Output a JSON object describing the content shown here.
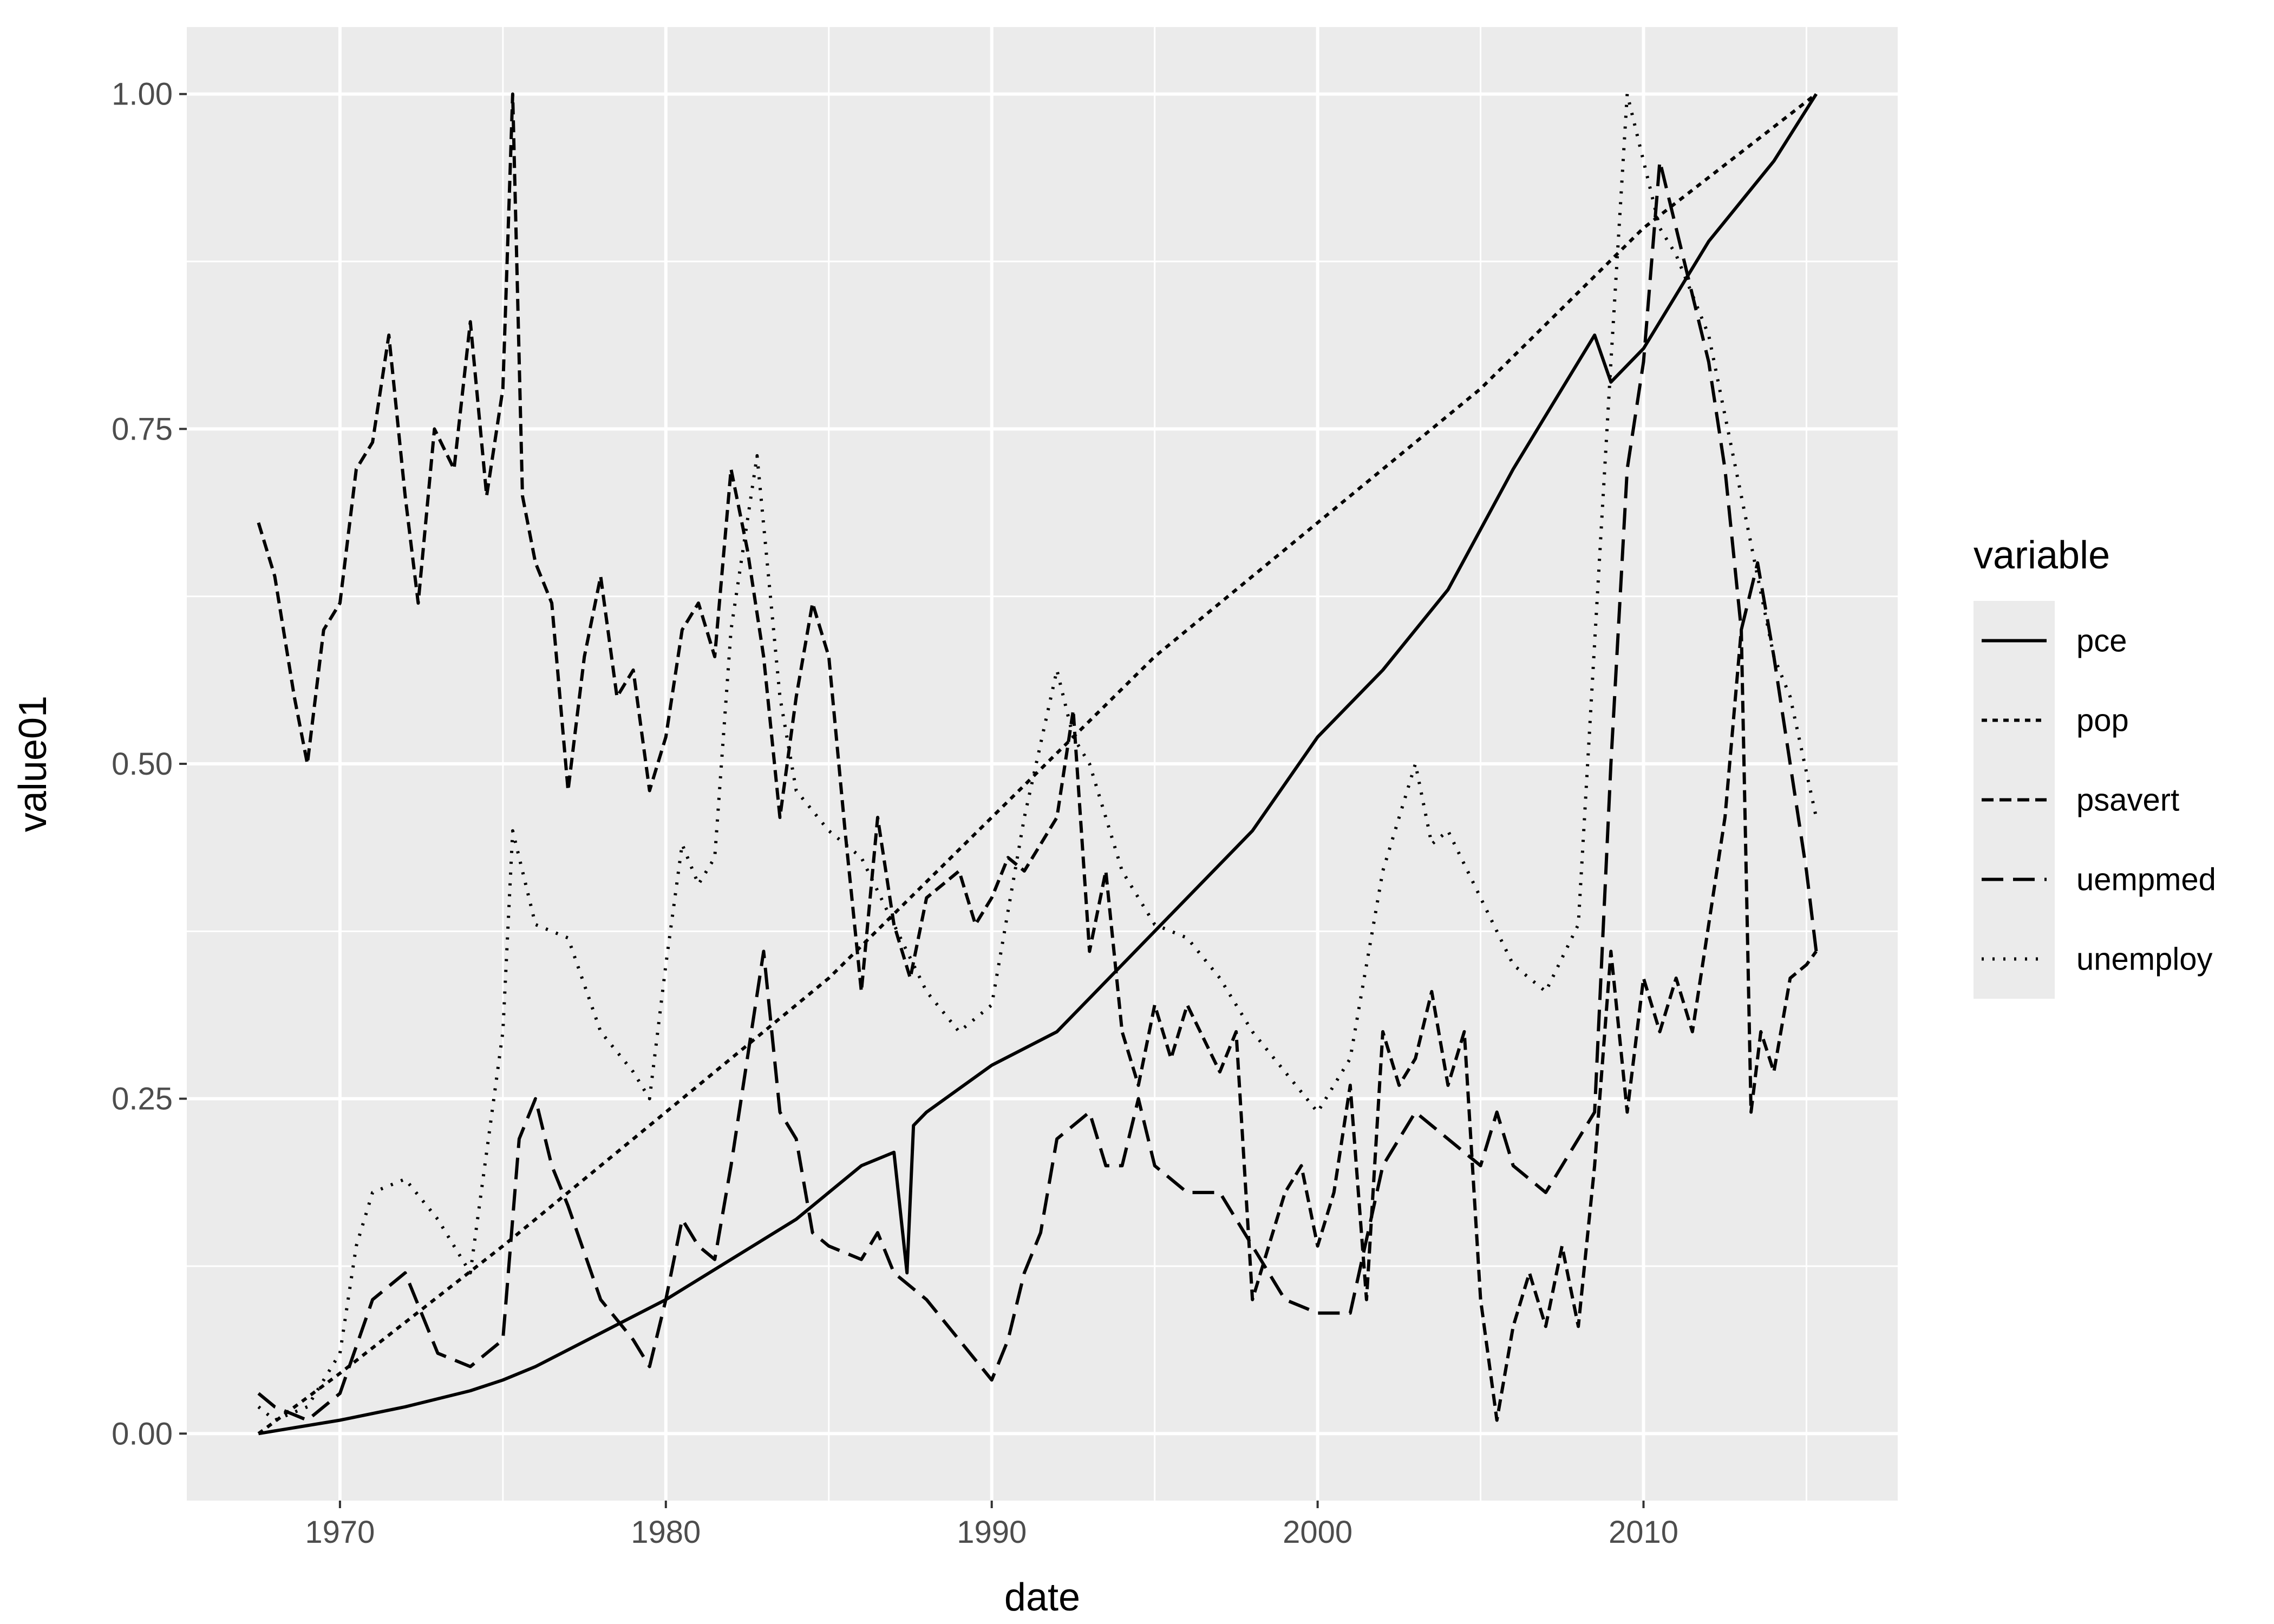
{
  "chart_data": {
    "type": "line",
    "title": "",
    "xlabel": "date",
    "ylabel": "value01",
    "xlim": [
      1965.3,
      2017.8
    ],
    "ylim": [
      -0.05,
      1.05
    ],
    "x_ticks": [
      1970,
      1980,
      1990,
      2000,
      2010
    ],
    "x_tick_labels": [
      "1970",
      "1980",
      "1990",
      "2000",
      "2010"
    ],
    "y_ticks": [
      0,
      0.25,
      0.5,
      0.75,
      1.0
    ],
    "y_tick_labels": [
      "0.00",
      "0.25",
      "0.50",
      "0.75",
      "1.00"
    ],
    "grid": true,
    "background": "#ebebeb",
    "line_color": "#000000",
    "legend": {
      "title": "variable",
      "position": "right"
    },
    "series": [
      {
        "name": "pce",
        "dash": "solid",
        "points": [
          [
            1967.5,
            0.0
          ],
          [
            1970,
            0.01
          ],
          [
            1972,
            0.02
          ],
          [
            1974,
            0.032
          ],
          [
            1975,
            0.04
          ],
          [
            1976,
            0.05
          ],
          [
            1978,
            0.075
          ],
          [
            1980,
            0.1
          ],
          [
            1982,
            0.13
          ],
          [
            1984,
            0.16
          ],
          [
            1986,
            0.2
          ],
          [
            1987,
            0.21
          ],
          [
            1987.4,
            0.12
          ],
          [
            1987.6,
            0.23
          ],
          [
            1988,
            0.24
          ],
          [
            1990,
            0.275
          ],
          [
            1992,
            0.3
          ],
          [
            1994,
            0.35
          ],
          [
            1996,
            0.4
          ],
          [
            1998,
            0.45
          ],
          [
            2000,
            0.52
          ],
          [
            2002,
            0.57
          ],
          [
            2004,
            0.63
          ],
          [
            2006,
            0.72
          ],
          [
            2007,
            0.76
          ],
          [
            2008,
            0.8
          ],
          [
            2008.5,
            0.82
          ],
          [
            2009,
            0.785
          ],
          [
            2010,
            0.81
          ],
          [
            2011,
            0.85
          ],
          [
            2012,
            0.89
          ],
          [
            2013,
            0.92
          ],
          [
            2014,
            0.95
          ],
          [
            2015.3,
            1.0
          ]
        ]
      },
      {
        "name": "pop",
        "dash": "short-dot",
        "points": [
          [
            1967.5,
            0.0
          ],
          [
            1970,
            0.045
          ],
          [
            1975,
            0.14
          ],
          [
            1980,
            0.24
          ],
          [
            1985,
            0.34
          ],
          [
            1990,
            0.46
          ],
          [
            1995,
            0.58
          ],
          [
            2000,
            0.68
          ],
          [
            2005,
            0.78
          ],
          [
            2010,
            0.9
          ],
          [
            2015.3,
            1.0
          ]
        ]
      },
      {
        "name": "psavert",
        "dash": "dashed",
        "points": [
          [
            1967.5,
            0.68
          ],
          [
            1968,
            0.64
          ],
          [
            1968.6,
            0.55
          ],
          [
            1969,
            0.5
          ],
          [
            1969.5,
            0.6
          ],
          [
            1970,
            0.62
          ],
          [
            1970.5,
            0.72
          ],
          [
            1971,
            0.74
          ],
          [
            1971.5,
            0.82
          ],
          [
            1972,
            0.7
          ],
          [
            1972.4,
            0.62
          ],
          [
            1972.9,
            0.75
          ],
          [
            1973.5,
            0.72
          ],
          [
            1974,
            0.83
          ],
          [
            1974.5,
            0.7
          ],
          [
            1975,
            0.78
          ],
          [
            1975.3,
            1.0
          ],
          [
            1975.6,
            0.7
          ],
          [
            1976,
            0.65
          ],
          [
            1976.5,
            0.62
          ],
          [
            1977,
            0.48
          ],
          [
            1977.5,
            0.58
          ],
          [
            1978,
            0.64
          ],
          [
            1978.5,
            0.55
          ],
          [
            1979,
            0.57
          ],
          [
            1979.5,
            0.48
          ],
          [
            1980,
            0.52
          ],
          [
            1980.5,
            0.6
          ],
          [
            1981,
            0.62
          ],
          [
            1981.5,
            0.58
          ],
          [
            1982,
            0.72
          ],
          [
            1982.5,
            0.66
          ],
          [
            1983,
            0.58
          ],
          [
            1983.5,
            0.46
          ],
          [
            1984,
            0.55
          ],
          [
            1984.5,
            0.62
          ],
          [
            1985,
            0.58
          ],
          [
            1985.5,
            0.45
          ],
          [
            1986,
            0.33
          ],
          [
            1986.5,
            0.46
          ],
          [
            1987,
            0.38
          ],
          [
            1987.5,
            0.34
          ],
          [
            1988,
            0.4
          ],
          [
            1989,
            0.42
          ],
          [
            1989.5,
            0.38
          ],
          [
            1990,
            0.4
          ],
          [
            1990.5,
            0.43
          ],
          [
            1991,
            0.42
          ],
          [
            1991.5,
            0.44
          ],
          [
            1992,
            0.46
          ],
          [
            1992.5,
            0.54
          ],
          [
            1993,
            0.36
          ],
          [
            1993.5,
            0.42
          ],
          [
            1994,
            0.3
          ],
          [
            1994.5,
            0.26
          ],
          [
            1995,
            0.32
          ],
          [
            1995.5,
            0.28
          ],
          [
            1996,
            0.32
          ],
          [
            1997,
            0.27
          ],
          [
            1997.5,
            0.3
          ],
          [
            1998,
            0.1
          ],
          [
            1998.5,
            0.14
          ],
          [
            1999,
            0.18
          ],
          [
            1999.5,
            0.2
          ],
          [
            2000,
            0.14
          ],
          [
            2000.5,
            0.18
          ],
          [
            2001,
            0.26
          ],
          [
            2001.5,
            0.1
          ],
          [
            2002,
            0.3
          ],
          [
            2002.5,
            0.26
          ],
          [
            2003,
            0.28
          ],
          [
            2003.5,
            0.33
          ],
          [
            2004,
            0.26
          ],
          [
            2004.5,
            0.3
          ],
          [
            2005,
            0.1
          ],
          [
            2005.5,
            0.01
          ],
          [
            2006,
            0.08
          ],
          [
            2006.5,
            0.12
          ],
          [
            2007,
            0.08
          ],
          [
            2007.5,
            0.14
          ],
          [
            2008,
            0.08
          ],
          [
            2008.5,
            0.2
          ],
          [
            2009,
            0.36
          ],
          [
            2009.5,
            0.24
          ],
          [
            2010,
            0.34
          ],
          [
            2010.5,
            0.3
          ],
          [
            2011,
            0.34
          ],
          [
            2011.5,
            0.3
          ],
          [
            2012,
            0.38
          ],
          [
            2012.5,
            0.46
          ],
          [
            2013,
            0.6
          ],
          [
            2013.3,
            0.24
          ],
          [
            2013.6,
            0.3
          ],
          [
            2014,
            0.27
          ],
          [
            2014.5,
            0.34
          ],
          [
            2015,
            0.35
          ],
          [
            2015.3,
            0.36
          ]
        ]
      },
      {
        "name": "uempmed",
        "dash": "long-dash",
        "points": [
          [
            1967.5,
            0.03
          ],
          [
            1968,
            0.02
          ],
          [
            1969,
            0.01
          ],
          [
            1970,
            0.03
          ],
          [
            1971,
            0.1
          ],
          [
            1972,
            0.12
          ],
          [
            1972.5,
            0.09
          ],
          [
            1973,
            0.06
          ],
          [
            1974,
            0.05
          ],
          [
            1975,
            0.07
          ],
          [
            1975.5,
            0.22
          ],
          [
            1976,
            0.25
          ],
          [
            1976.5,
            0.2
          ],
          [
            1977,
            0.17
          ],
          [
            1978,
            0.1
          ],
          [
            1979,
            0.07
          ],
          [
            1979.5,
            0.05
          ],
          [
            1980,
            0.1
          ],
          [
            1980.5,
            0.16
          ],
          [
            1981,
            0.14
          ],
          [
            1981.5,
            0.13
          ],
          [
            1982,
            0.2
          ],
          [
            1982.5,
            0.28
          ],
          [
            1983,
            0.36
          ],
          [
            1983.5,
            0.24
          ],
          [
            1984,
            0.22
          ],
          [
            1984.5,
            0.15
          ],
          [
            1985,
            0.14
          ],
          [
            1986,
            0.13
          ],
          [
            1986.5,
            0.15
          ],
          [
            1987,
            0.12
          ],
          [
            1988,
            0.1
          ],
          [
            1989,
            0.07
          ],
          [
            1990,
            0.04
          ],
          [
            1990.5,
            0.07
          ],
          [
            1991,
            0.12
          ],
          [
            1991.5,
            0.15
          ],
          [
            1992,
            0.22
          ],
          [
            1993,
            0.24
          ],
          [
            1993.5,
            0.2
          ],
          [
            1994,
            0.2
          ],
          [
            1994.5,
            0.25
          ],
          [
            1995,
            0.2
          ],
          [
            1996,
            0.18
          ],
          [
            1997,
            0.18
          ],
          [
            1998,
            0.14
          ],
          [
            1999,
            0.1
          ],
          [
            2000,
            0.09
          ],
          [
            2001,
            0.09
          ],
          [
            2002,
            0.2
          ],
          [
            2003,
            0.24
          ],
          [
            2004,
            0.22
          ],
          [
            2005,
            0.2
          ],
          [
            2005.5,
            0.24
          ],
          [
            2006,
            0.2
          ],
          [
            2007,
            0.18
          ],
          [
            2007.5,
            0.2
          ],
          [
            2008,
            0.22
          ],
          [
            2008.5,
            0.24
          ],
          [
            2009,
            0.5
          ],
          [
            2009.5,
            0.72
          ],
          [
            2010,
            0.8
          ],
          [
            2010.5,
            0.95
          ],
          [
            2011,
            0.9
          ],
          [
            2011.5,
            0.85
          ],
          [
            2012,
            0.8
          ],
          [
            2012.5,
            0.72
          ],
          [
            2013,
            0.6
          ],
          [
            2013.5,
            0.65
          ],
          [
            2014,
            0.58
          ],
          [
            2014.5,
            0.5
          ],
          [
            2015,
            0.42
          ],
          [
            2015.3,
            0.36
          ]
        ]
      },
      {
        "name": "unemploy",
        "dash": "dotted",
        "points": [
          [
            1967.5,
            0.02
          ],
          [
            1968,
            0.01
          ],
          [
            1969,
            0.02
          ],
          [
            1970,
            0.06
          ],
          [
            1970.5,
            0.14
          ],
          [
            1971,
            0.18
          ],
          [
            1972,
            0.19
          ],
          [
            1973,
            0.16
          ],
          [
            1974,
            0.12
          ],
          [
            1975,
            0.3
          ],
          [
            1975.3,
            0.45
          ],
          [
            1976,
            0.38
          ],
          [
            1977,
            0.37
          ],
          [
            1978,
            0.3
          ],
          [
            1979,
            0.27
          ],
          [
            1979.5,
            0.25
          ],
          [
            1980,
            0.35
          ],
          [
            1980.5,
            0.44
          ],
          [
            1981,
            0.41
          ],
          [
            1981.5,
            0.43
          ],
          [
            1982,
            0.6
          ],
          [
            1982.8,
            0.73
          ],
          [
            1983.5,
            0.55
          ],
          [
            1984,
            0.48
          ],
          [
            1985,
            0.45
          ],
          [
            1986,
            0.43
          ],
          [
            1987,
            0.38
          ],
          [
            1988,
            0.33
          ],
          [
            1989,
            0.3
          ],
          [
            1990,
            0.32
          ],
          [
            1991,
            0.46
          ],
          [
            1992,
            0.57
          ],
          [
            1992.5,
            0.52
          ],
          [
            1993,
            0.5
          ],
          [
            1994,
            0.42
          ],
          [
            1995,
            0.38
          ],
          [
            1996,
            0.37
          ],
          [
            1997,
            0.34
          ],
          [
            1998,
            0.3
          ],
          [
            1999,
            0.27
          ],
          [
            2000,
            0.24
          ],
          [
            2001,
            0.28
          ],
          [
            2002,
            0.42
          ],
          [
            2003,
            0.5
          ],
          [
            2003.5,
            0.44
          ],
          [
            2004,
            0.45
          ],
          [
            2005,
            0.4
          ],
          [
            2006,
            0.35
          ],
          [
            2007,
            0.33
          ],
          [
            2008,
            0.38
          ],
          [
            2009,
            0.8
          ],
          [
            2009.5,
            1.0
          ],
          [
            2010,
            0.95
          ],
          [
            2010.5,
            0.9
          ],
          [
            2011,
            0.88
          ],
          [
            2012,
            0.82
          ],
          [
            2013,
            0.7
          ],
          [
            2014,
            0.58
          ],
          [
            2014.5,
            0.55
          ],
          [
            2015.3,
            0.46
          ]
        ]
      }
    ]
  }
}
